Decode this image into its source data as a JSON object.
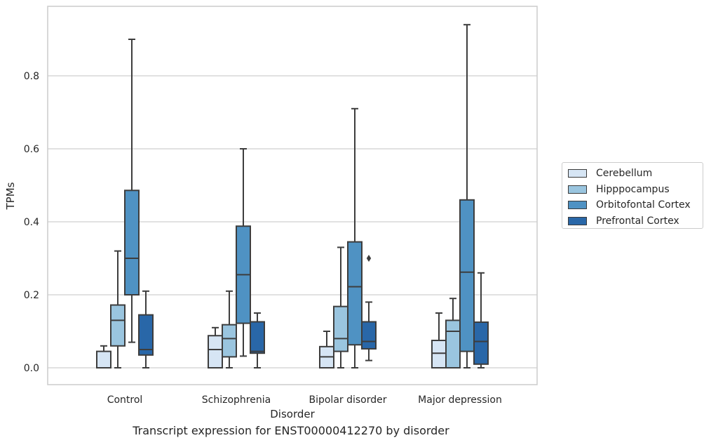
{
  "caption": "Transcript expression for ENST00000412270 by disorder",
  "chart_data": {
    "type": "boxplot",
    "title": "",
    "xlabel": "Disorder",
    "ylabel": "TPMs",
    "ylim": [
      -0.045,
      0.995
    ],
    "yticks": [
      0.0,
      0.2,
      0.4,
      0.6,
      0.8
    ],
    "ytick_labels": [
      "0.0",
      "0.2",
      "0.4",
      "0.6",
      "0.8"
    ],
    "grid": "horizontal",
    "legend_position": "right",
    "categories": [
      "Control",
      "Schizophrenia",
      "Bipolar disorder",
      "Major depression"
    ],
    "series": [
      {
        "name": "Cerebellum",
        "color": "#d6e5f4",
        "boxes": [
          {
            "q1": 0.0,
            "median": 0.0,
            "q3": 0.045,
            "whisker_low": 0.0,
            "whisker_high": 0.06,
            "outliers": []
          },
          {
            "q1": 0.0,
            "median": 0.05,
            "q3": 0.088,
            "whisker_low": 0.0,
            "whisker_high": 0.11,
            "outliers": []
          },
          {
            "q1": 0.0,
            "median": 0.03,
            "q3": 0.058,
            "whisker_low": 0.0,
            "whisker_high": 0.1,
            "outliers": []
          },
          {
            "q1": 0.0,
            "median": 0.04,
            "q3": 0.075,
            "whisker_low": 0.0,
            "whisker_high": 0.15,
            "outliers": []
          }
        ]
      },
      {
        "name": "Hipppocampus",
        "color": "#9ac5df",
        "boxes": [
          {
            "q1": 0.06,
            "median": 0.13,
            "q3": 0.172,
            "whisker_low": 0.0,
            "whisker_high": 0.32,
            "outliers": []
          },
          {
            "q1": 0.03,
            "median": 0.08,
            "q3": 0.118,
            "whisker_low": 0.0,
            "whisker_high": 0.21,
            "outliers": []
          },
          {
            "q1": 0.045,
            "median": 0.08,
            "q3": 0.168,
            "whisker_low": 0.0,
            "whisker_high": 0.33,
            "outliers": []
          },
          {
            "q1": 0.0,
            "median": 0.1,
            "q3": 0.13,
            "whisker_low": 0.0,
            "whisker_high": 0.19,
            "outliers": []
          }
        ]
      },
      {
        "name": "Orbitofontal Cortex",
        "color": "#4f92c3",
        "boxes": [
          {
            "q1": 0.2,
            "median": 0.3,
            "q3": 0.486,
            "whisker_low": 0.07,
            "whisker_high": 0.9,
            "outliers": []
          },
          {
            "q1": 0.122,
            "median": 0.255,
            "q3": 0.388,
            "whisker_low": 0.032,
            "whisker_high": 0.6,
            "outliers": []
          },
          {
            "q1": 0.063,
            "median": 0.222,
            "q3": 0.345,
            "whisker_low": 0.0,
            "whisker_high": 0.71,
            "outliers": []
          },
          {
            "q1": 0.045,
            "median": 0.262,
            "q3": 0.46,
            "whisker_low": 0.0,
            "whisker_high": 0.94,
            "outliers": []
          }
        ]
      },
      {
        "name": "Prefrontal Cortex",
        "color": "#2967a8",
        "boxes": [
          {
            "q1": 0.035,
            "median": 0.05,
            "q3": 0.145,
            "whisker_low": 0.0,
            "whisker_high": 0.21,
            "outliers": []
          },
          {
            "q1": 0.04,
            "median": 0.045,
            "q3": 0.126,
            "whisker_low": 0.0,
            "whisker_high": 0.15,
            "outliers": []
          },
          {
            "q1": 0.052,
            "median": 0.072,
            "q3": 0.126,
            "whisker_low": 0.02,
            "whisker_high": 0.18,
            "outliers": [
              0.3
            ]
          },
          {
            "q1": 0.01,
            "median": 0.072,
            "q3": 0.125,
            "whisker_low": 0.0,
            "whisker_high": 0.26,
            "outliers": []
          }
        ]
      }
    ]
  }
}
